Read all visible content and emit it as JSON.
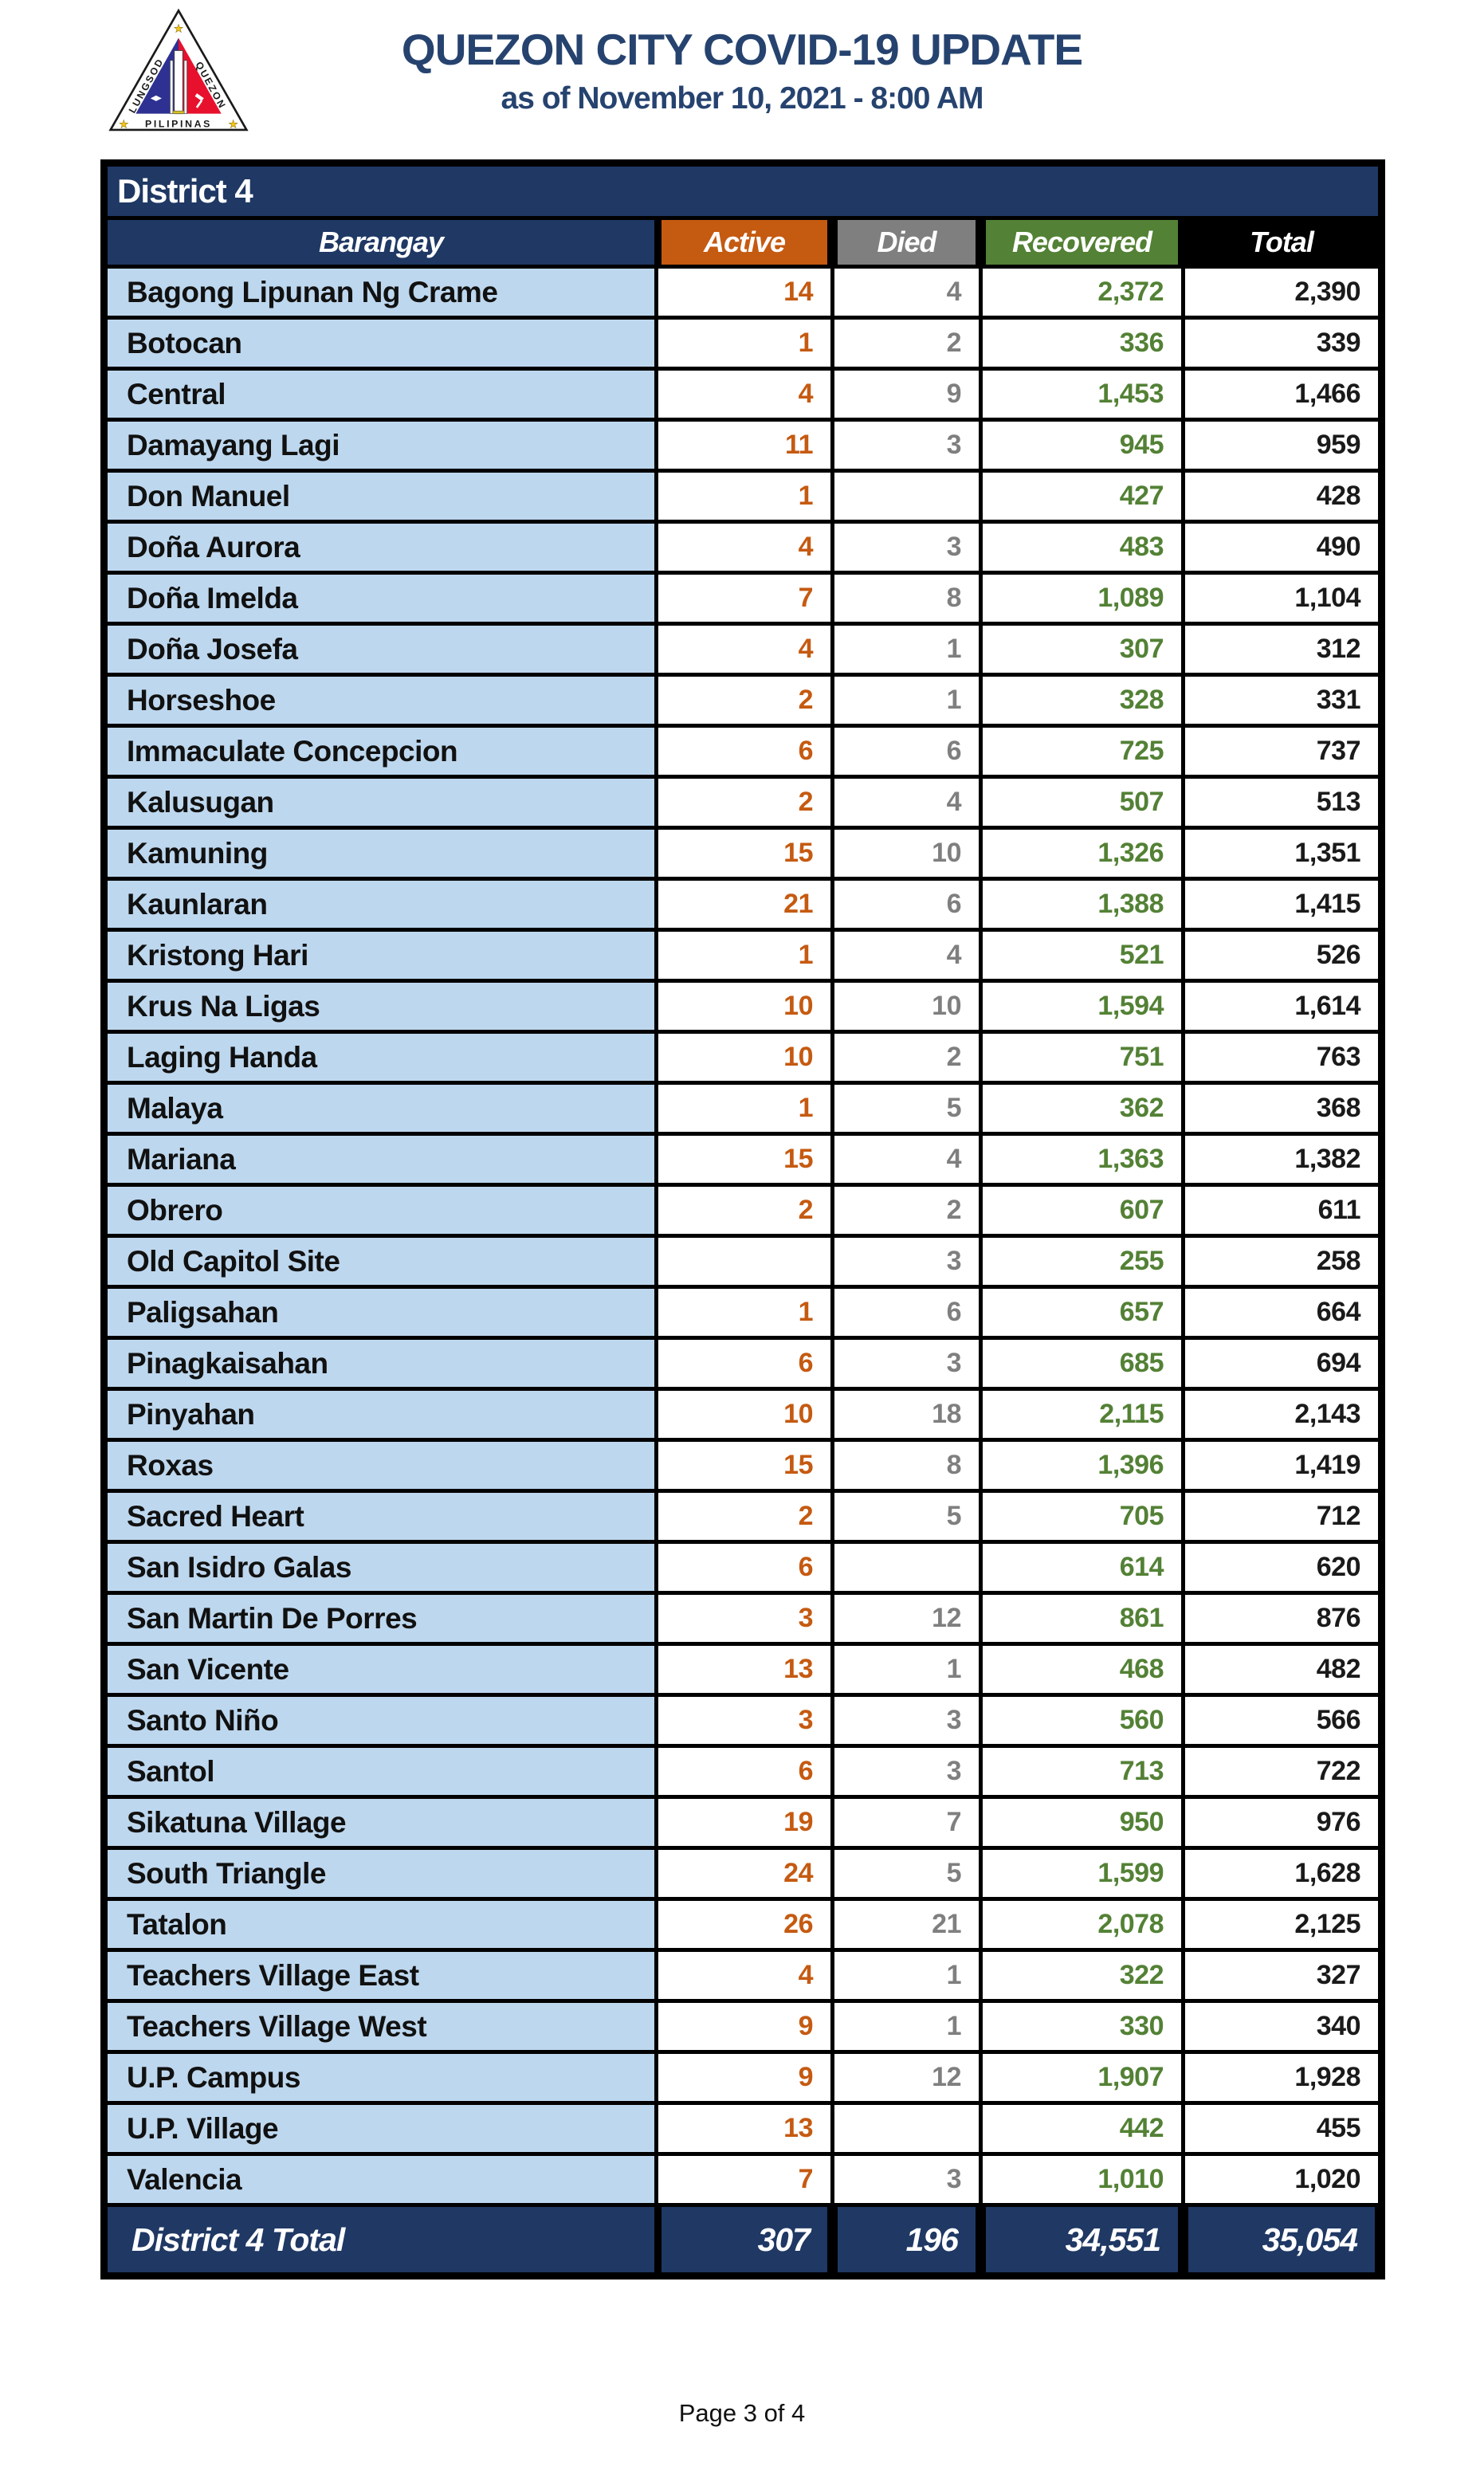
{
  "header": {
    "title": "QUEZON CITY COVID-19 UPDATE",
    "subtitle": "as of November 10, 2021 - 8:00 AM",
    "logo": {
      "icon": "quezon-city-seal-icon",
      "text_left": "LUNGSOD",
      "text_right": "QUEZON",
      "text_bottom": "PILIPINAS"
    }
  },
  "table": {
    "district_label": "District 4",
    "columns": [
      "Barangay",
      "Active",
      "Died",
      "Recovered",
      "Total"
    ],
    "colors": {
      "navy": "#1F3864",
      "row_blue": "#BDD7EE",
      "active_orange": "#C55A11",
      "died_gray": "#7F7F7F",
      "recovered_green": "#538135",
      "total_black": "#000000"
    },
    "rows": [
      {
        "name": "Bagong Lipunan Ng Crame",
        "active": "14",
        "died": "4",
        "recovered": "2,372",
        "total": "2,390"
      },
      {
        "name": "Botocan",
        "active": "1",
        "died": "2",
        "recovered": "336",
        "total": "339"
      },
      {
        "name": "Central",
        "active": "4",
        "died": "9",
        "recovered": "1,453",
        "total": "1,466"
      },
      {
        "name": "Damayang Lagi",
        "active": "11",
        "died": "3",
        "recovered": "945",
        "total": "959"
      },
      {
        "name": "Don Manuel",
        "active": "1",
        "died": "",
        "recovered": "427",
        "total": "428"
      },
      {
        "name": "Doña Aurora",
        "active": "4",
        "died": "3",
        "recovered": "483",
        "total": "490"
      },
      {
        "name": "Doña Imelda",
        "active": "7",
        "died": "8",
        "recovered": "1,089",
        "total": "1,104"
      },
      {
        "name": "Doña Josefa",
        "active": "4",
        "died": "1",
        "recovered": "307",
        "total": "312"
      },
      {
        "name": "Horseshoe",
        "active": "2",
        "died": "1",
        "recovered": "328",
        "total": "331"
      },
      {
        "name": "Immaculate Concepcion",
        "active": "6",
        "died": "6",
        "recovered": "725",
        "total": "737"
      },
      {
        "name": "Kalusugan",
        "active": "2",
        "died": "4",
        "recovered": "507",
        "total": "513"
      },
      {
        "name": "Kamuning",
        "active": "15",
        "died": "10",
        "recovered": "1,326",
        "total": "1,351"
      },
      {
        "name": "Kaunlaran",
        "active": "21",
        "died": "6",
        "recovered": "1,388",
        "total": "1,415"
      },
      {
        "name": "Kristong Hari",
        "active": "1",
        "died": "4",
        "recovered": "521",
        "total": "526"
      },
      {
        "name": "Krus Na Ligas",
        "active": "10",
        "died": "10",
        "recovered": "1,594",
        "total": "1,614"
      },
      {
        "name": "Laging Handa",
        "active": "10",
        "died": "2",
        "recovered": "751",
        "total": "763"
      },
      {
        "name": "Malaya",
        "active": "1",
        "died": "5",
        "recovered": "362",
        "total": "368"
      },
      {
        "name": "Mariana",
        "active": "15",
        "died": "4",
        "recovered": "1,363",
        "total": "1,382"
      },
      {
        "name": "Obrero",
        "active": "2",
        "died": "2",
        "recovered": "607",
        "total": "611"
      },
      {
        "name": "Old Capitol Site",
        "active": "",
        "died": "3",
        "recovered": "255",
        "total": "258"
      },
      {
        "name": "Paligsahan",
        "active": "1",
        "died": "6",
        "recovered": "657",
        "total": "664"
      },
      {
        "name": "Pinagkaisahan",
        "active": "6",
        "died": "3",
        "recovered": "685",
        "total": "694"
      },
      {
        "name": "Pinyahan",
        "active": "10",
        "died": "18",
        "recovered": "2,115",
        "total": "2,143"
      },
      {
        "name": "Roxas",
        "active": "15",
        "died": "8",
        "recovered": "1,396",
        "total": "1,419"
      },
      {
        "name": "Sacred Heart",
        "active": "2",
        "died": "5",
        "recovered": "705",
        "total": "712"
      },
      {
        "name": "San Isidro Galas",
        "active": "6",
        "died": "",
        "recovered": "614",
        "total": "620"
      },
      {
        "name": "San Martin De Porres",
        "active": "3",
        "died": "12",
        "recovered": "861",
        "total": "876"
      },
      {
        "name": "San Vicente",
        "active": "13",
        "died": "1",
        "recovered": "468",
        "total": "482"
      },
      {
        "name": "Santo Niño",
        "active": "3",
        "died": "3",
        "recovered": "560",
        "total": "566"
      },
      {
        "name": "Santol",
        "active": "6",
        "died": "3",
        "recovered": "713",
        "total": "722"
      },
      {
        "name": "Sikatuna Village",
        "active": "19",
        "died": "7",
        "recovered": "950",
        "total": "976"
      },
      {
        "name": "South Triangle",
        "active": "24",
        "died": "5",
        "recovered": "1,599",
        "total": "1,628"
      },
      {
        "name": "Tatalon",
        "active": "26",
        "died": "21",
        "recovered": "2,078",
        "total": "2,125"
      },
      {
        "name": "Teachers Village East",
        "active": "4",
        "died": "1",
        "recovered": "322",
        "total": "327"
      },
      {
        "name": "Teachers Village West",
        "active": "9",
        "died": "1",
        "recovered": "330",
        "total": "340"
      },
      {
        "name": "U.P. Campus",
        "active": "9",
        "died": "12",
        "recovered": "1,907",
        "total": "1,928"
      },
      {
        "name": "U.P. Village",
        "active": "13",
        "died": "",
        "recovered": "442",
        "total": "455"
      },
      {
        "name": "Valencia",
        "active": "7",
        "died": "3",
        "recovered": "1,010",
        "total": "1,020"
      }
    ],
    "total_row": {
      "label": "District 4 Total",
      "active": "307",
      "died": "196",
      "recovered": "34,551",
      "total": "35,054"
    }
  },
  "footer": {
    "page_label": "Page 3 of 4"
  }
}
